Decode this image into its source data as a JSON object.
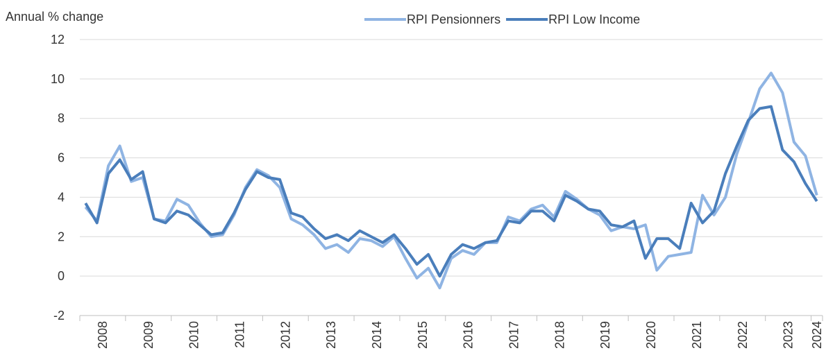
{
  "chart_data": {
    "type": "line",
    "y_label": "Annual % change",
    "categories": [
      "2008",
      null,
      null,
      null,
      "2009",
      null,
      null,
      null,
      "2010",
      null,
      null,
      null,
      "2011",
      null,
      null,
      null,
      "2012",
      null,
      null,
      null,
      "2013",
      null,
      null,
      null,
      "2014",
      null,
      null,
      null,
      "2015",
      null,
      null,
      null,
      "2016",
      null,
      null,
      null,
      "2017",
      null,
      null,
      null,
      "2018",
      null,
      null,
      null,
      "2019",
      null,
      null,
      null,
      "2020",
      null,
      null,
      null,
      "2021",
      null,
      null,
      null,
      "2022",
      null,
      null,
      null,
      "2023",
      null,
      null,
      null,
      "2024"
    ],
    "series": [
      {
        "name": "RPI Pensionners",
        "color": "#8fb4e3",
        "values": [
          3.5,
          2.8,
          5.6,
          6.6,
          4.8,
          5.0,
          2.9,
          2.8,
          3.9,
          3.6,
          2.7,
          2.0,
          2.1,
          3.1,
          4.5,
          5.4,
          5.1,
          4.5,
          2.9,
          2.6,
          2.1,
          1.4,
          1.6,
          1.2,
          1.9,
          1.8,
          1.5,
          2.0,
          0.9,
          -0.1,
          0.4,
          -0.6,
          0.9,
          1.3,
          1.1,
          1.7,
          1.7,
          3.0,
          2.8,
          3.4,
          3.6,
          3.0,
          4.3,
          3.9,
          3.4,
          3.1,
          2.3,
          2.5,
          2.4,
          2.6,
          0.3,
          1.0,
          1.1,
          1.2,
          4.1,
          3.1,
          4.0,
          6.2,
          7.8,
          9.5,
          10.3,
          9.3,
          6.8,
          6.1,
          4.1
        ]
      },
      {
        "name": "RPI Low Income",
        "color": "#4a7ebb",
        "values": [
          3.7,
          2.7,
          5.2,
          5.9,
          4.9,
          5.3,
          2.9,
          2.7,
          3.3,
          3.1,
          2.6,
          2.1,
          2.2,
          3.2,
          4.4,
          5.3,
          5.0,
          4.9,
          3.2,
          3.0,
          2.4,
          1.9,
          2.1,
          1.8,
          2.3,
          2.0,
          1.7,
          2.1,
          1.4,
          0.6,
          1.1,
          0.0,
          1.1,
          1.6,
          1.4,
          1.7,
          1.8,
          2.8,
          2.7,
          3.3,
          3.3,
          2.8,
          4.1,
          3.8,
          3.4,
          3.3,
          2.6,
          2.5,
          2.8,
          0.9,
          1.9,
          1.9,
          1.4,
          3.7,
          2.7,
          3.3,
          5.2,
          6.6,
          7.9,
          8.5,
          8.6,
          6.4,
          5.8,
          4.7,
          3.8
        ]
      }
    ],
    "ylim": [
      -2,
      12
    ],
    "yticks": [
      -2,
      0,
      2,
      4,
      6,
      8,
      10,
      12
    ],
    "grid": true,
    "legend": "top"
  }
}
